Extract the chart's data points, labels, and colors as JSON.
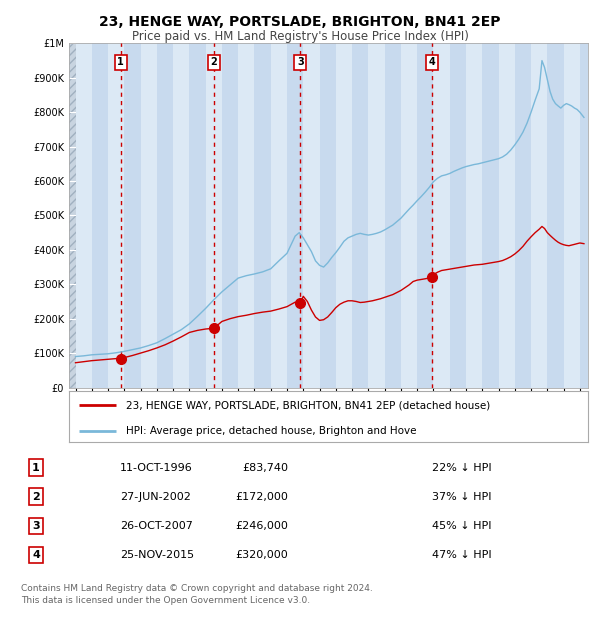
{
  "title": "23, HENGE WAY, PORTSLADE, BRIGHTON, BN41 2EP",
  "subtitle": "Price paid vs. HM Land Registry's House Price Index (HPI)",
  "title_fontsize": 10,
  "subtitle_fontsize": 8.5,
  "tick_fontsize": 7,
  "bg_color": "#dce9f5",
  "grid_color": "#ffffff",
  "hpi_color": "#7ab8d9",
  "price_color": "#cc0000",
  "vline_color": "#cc0000",
  "ylim": [
    0,
    1000000
  ],
  "ytick_values": [
    0,
    100000,
    200000,
    300000,
    400000,
    500000,
    600000,
    700000,
    800000,
    900000,
    1000000
  ],
  "ytick_labels": [
    "£0",
    "£100K",
    "£200K",
    "£300K",
    "£400K",
    "£500K",
    "£600K",
    "£700K",
    "£800K",
    "£900K",
    "£1M"
  ],
  "sale_dates": [
    1996.78,
    2002.49,
    2007.82,
    2015.9
  ],
  "sale_prices": [
    83740,
    172000,
    246000,
    320000
  ],
  "sale_labels": [
    "1",
    "2",
    "3",
    "4"
  ],
  "legend_line1": "23, HENGE WAY, PORTSLADE, BRIGHTON, BN41 2EP (detached house)",
  "legend_line2": "HPI: Average price, detached house, Brighton and Hove",
  "table_data": [
    [
      "1",
      "11-OCT-1996",
      "£83,740",
      "22% ↓ HPI"
    ],
    [
      "2",
      "27-JUN-2002",
      "£172,000",
      "37% ↓ HPI"
    ],
    [
      "3",
      "26-OCT-2007",
      "£246,000",
      "45% ↓ HPI"
    ],
    [
      "4",
      "25-NOV-2015",
      "£320,000",
      "47% ↓ HPI"
    ]
  ],
  "footnote": "Contains HM Land Registry data © Crown copyright and database right 2024.\nThis data is licensed under the Open Government Licence v3.0.",
  "xmin": 1993.6,
  "xmax": 2025.5,
  "hpi_curve": [
    [
      1994.0,
      90000
    ],
    [
      1994.5,
      92000
    ],
    [
      1995.0,
      95000
    ],
    [
      1995.5,
      96500
    ],
    [
      1996.0,
      98000
    ],
    [
      1996.5,
      101000
    ],
    [
      1997.0,
      105000
    ],
    [
      1997.5,
      110000
    ],
    [
      1998.0,
      115000
    ],
    [
      1998.5,
      122000
    ],
    [
      1999.0,
      130000
    ],
    [
      1999.5,
      142000
    ],
    [
      2000.0,
      155000
    ],
    [
      2000.5,
      168000
    ],
    [
      2001.0,
      185000
    ],
    [
      2001.5,
      207000
    ],
    [
      2002.0,
      230000
    ],
    [
      2002.5,
      255000
    ],
    [
      2003.0,
      278000
    ],
    [
      2003.5,
      298000
    ],
    [
      2004.0,
      318000
    ],
    [
      2004.5,
      325000
    ],
    [
      2005.0,
      330000
    ],
    [
      2005.5,
      336000
    ],
    [
      2006.0,
      345000
    ],
    [
      2006.5,
      368000
    ],
    [
      2007.0,
      390000
    ],
    [
      2007.25,
      415000
    ],
    [
      2007.5,
      440000
    ],
    [
      2007.75,
      450000
    ],
    [
      2008.0,
      435000
    ],
    [
      2008.25,
      415000
    ],
    [
      2008.5,
      395000
    ],
    [
      2008.75,
      368000
    ],
    [
      2009.0,
      355000
    ],
    [
      2009.25,
      350000
    ],
    [
      2009.5,
      362000
    ],
    [
      2009.75,
      378000
    ],
    [
      2010.0,
      392000
    ],
    [
      2010.25,
      408000
    ],
    [
      2010.5,
      425000
    ],
    [
      2010.75,
      435000
    ],
    [
      2011.0,
      440000
    ],
    [
      2011.25,
      445000
    ],
    [
      2011.5,
      448000
    ],
    [
      2011.75,
      445000
    ],
    [
      2012.0,
      443000
    ],
    [
      2012.25,
      445000
    ],
    [
      2012.5,
      448000
    ],
    [
      2012.75,
      452000
    ],
    [
      2013.0,
      458000
    ],
    [
      2013.25,
      465000
    ],
    [
      2013.5,
      472000
    ],
    [
      2013.75,
      482000
    ],
    [
      2014.0,
      492000
    ],
    [
      2014.25,
      505000
    ],
    [
      2014.5,
      518000
    ],
    [
      2014.75,
      530000
    ],
    [
      2015.0,
      543000
    ],
    [
      2015.25,
      555000
    ],
    [
      2015.5,
      568000
    ],
    [
      2015.75,
      582000
    ],
    [
      2016.0,
      598000
    ],
    [
      2016.25,
      608000
    ],
    [
      2016.5,
      615000
    ],
    [
      2016.75,
      618000
    ],
    [
      2017.0,
      622000
    ],
    [
      2017.25,
      628000
    ],
    [
      2017.5,
      633000
    ],
    [
      2017.75,
      638000
    ],
    [
      2018.0,
      642000
    ],
    [
      2018.25,
      645000
    ],
    [
      2018.5,
      648000
    ],
    [
      2018.75,
      650000
    ],
    [
      2019.0,
      653000
    ],
    [
      2019.25,
      656000
    ],
    [
      2019.5,
      659000
    ],
    [
      2019.75,
      662000
    ],
    [
      2020.0,
      665000
    ],
    [
      2020.25,
      670000
    ],
    [
      2020.5,
      678000
    ],
    [
      2020.75,
      690000
    ],
    [
      2021.0,
      705000
    ],
    [
      2021.25,
      722000
    ],
    [
      2021.5,
      742000
    ],
    [
      2021.75,
      768000
    ],
    [
      2022.0,
      800000
    ],
    [
      2022.25,
      835000
    ],
    [
      2022.5,
      868000
    ],
    [
      2022.67,
      950000
    ],
    [
      2022.83,
      930000
    ],
    [
      2023.0,
      895000
    ],
    [
      2023.17,
      860000
    ],
    [
      2023.33,
      838000
    ],
    [
      2023.5,
      825000
    ],
    [
      2023.67,
      818000
    ],
    [
      2023.83,
      812000
    ],
    [
      2024.0,
      820000
    ],
    [
      2024.17,
      825000
    ],
    [
      2024.33,
      822000
    ],
    [
      2024.5,
      818000
    ],
    [
      2024.67,
      812000
    ],
    [
      2024.83,
      808000
    ],
    [
      2025.0,
      800000
    ],
    [
      2025.25,
      785000
    ]
  ],
  "price_curve": [
    [
      1994.0,
      72000
    ],
    [
      1994.5,
      75000
    ],
    [
      1995.0,
      78000
    ],
    [
      1995.5,
      80000
    ],
    [
      1996.0,
      82000
    ],
    [
      1996.5,
      84000
    ],
    [
      1996.78,
      83740
    ],
    [
      1997.0,
      87000
    ],
    [
      1997.5,
      93000
    ],
    [
      1998.0,
      100000
    ],
    [
      1998.5,
      107000
    ],
    [
      1999.0,
      115000
    ],
    [
      1999.5,
      124000
    ],
    [
      2000.0,
      135000
    ],
    [
      2000.5,
      147000
    ],
    [
      2001.0,
      160000
    ],
    [
      2001.5,
      166000
    ],
    [
      2002.0,
      170000
    ],
    [
      2002.49,
      172000
    ],
    [
      2002.5,
      174000
    ],
    [
      2002.75,
      182000
    ],
    [
      2003.0,
      192000
    ],
    [
      2003.5,
      200000
    ],
    [
      2004.0,
      206000
    ],
    [
      2004.5,
      210000
    ],
    [
      2005.0,
      215000
    ],
    [
      2005.5,
      219000
    ],
    [
      2006.0,
      222000
    ],
    [
      2006.5,
      228000
    ],
    [
      2007.0,
      235000
    ],
    [
      2007.5,
      248000
    ],
    [
      2007.82,
      246000
    ],
    [
      2008.0,
      265000
    ],
    [
      2008.25,
      250000
    ],
    [
      2008.5,
      225000
    ],
    [
      2008.75,
      205000
    ],
    [
      2009.0,
      195000
    ],
    [
      2009.25,
      197000
    ],
    [
      2009.5,
      205000
    ],
    [
      2009.75,
      218000
    ],
    [
      2010.0,
      232000
    ],
    [
      2010.25,
      242000
    ],
    [
      2010.5,
      248000
    ],
    [
      2010.75,
      252000
    ],
    [
      2011.0,
      252000
    ],
    [
      2011.25,
      250000
    ],
    [
      2011.5,
      247000
    ],
    [
      2011.75,
      248000
    ],
    [
      2012.0,
      250000
    ],
    [
      2012.25,
      252000
    ],
    [
      2012.5,
      255000
    ],
    [
      2012.75,
      258000
    ],
    [
      2013.0,
      262000
    ],
    [
      2013.25,
      266000
    ],
    [
      2013.5,
      270000
    ],
    [
      2013.75,
      276000
    ],
    [
      2014.0,
      282000
    ],
    [
      2014.25,
      290000
    ],
    [
      2014.5,
      298000
    ],
    [
      2014.75,
      308000
    ],
    [
      2015.0,
      312000
    ],
    [
      2015.5,
      316000
    ],
    [
      2015.9,
      320000
    ],
    [
      2016.0,
      328000
    ],
    [
      2016.25,
      335000
    ],
    [
      2016.5,
      340000
    ],
    [
      2016.75,
      342000
    ],
    [
      2017.0,
      344000
    ],
    [
      2017.25,
      346000
    ],
    [
      2017.5,
      348000
    ],
    [
      2017.75,
      350000
    ],
    [
      2018.0,
      352000
    ],
    [
      2018.25,
      354000
    ],
    [
      2018.5,
      356000
    ],
    [
      2018.75,
      357000
    ],
    [
      2019.0,
      358000
    ],
    [
      2019.25,
      360000
    ],
    [
      2019.5,
      362000
    ],
    [
      2019.75,
      364000
    ],
    [
      2020.0,
      366000
    ],
    [
      2020.25,
      369000
    ],
    [
      2020.5,
      374000
    ],
    [
      2020.75,
      380000
    ],
    [
      2021.0,
      388000
    ],
    [
      2021.25,
      398000
    ],
    [
      2021.5,
      410000
    ],
    [
      2021.75,
      425000
    ],
    [
      2022.0,
      438000
    ],
    [
      2022.25,
      450000
    ],
    [
      2022.5,
      460000
    ],
    [
      2022.67,
      468000
    ],
    [
      2022.83,
      462000
    ],
    [
      2023.0,
      450000
    ],
    [
      2023.17,
      442000
    ],
    [
      2023.33,
      435000
    ],
    [
      2023.5,
      428000
    ],
    [
      2023.67,
      422000
    ],
    [
      2023.83,
      418000
    ],
    [
      2024.0,
      415000
    ],
    [
      2024.17,
      413000
    ],
    [
      2024.33,
      412000
    ],
    [
      2024.5,
      414000
    ],
    [
      2024.67,
      416000
    ],
    [
      2024.83,
      418000
    ],
    [
      2025.0,
      420000
    ],
    [
      2025.25,
      418000
    ]
  ]
}
